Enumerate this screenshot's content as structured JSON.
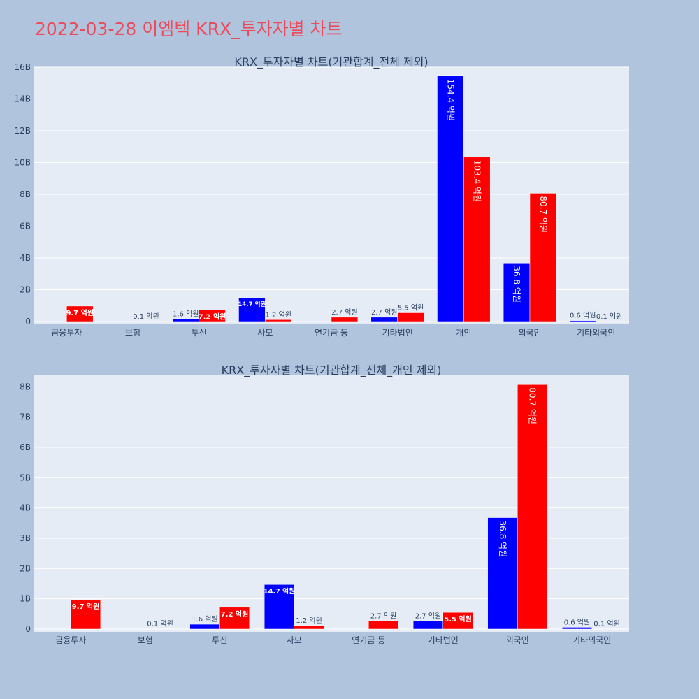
{
  "title": "2022-03-28 이엠텍 KRX_투자자별 차트",
  "colors": {
    "buy": "#0000ff",
    "sell": "#ff0000",
    "plot_bg": "#e5ecf6",
    "page_bg": "#b0c4de",
    "title": "#ee4b5a"
  },
  "chart_data": [
    {
      "type": "bar",
      "title": "KRX_투자자별 차트(기관합계_전체 제외)",
      "categories": [
        "금융투자",
        "보험",
        "투신",
        "사모",
        "연기금 등",
        "기타법인",
        "개인",
        "외국인",
        "기타외국인"
      ],
      "ylim": [
        0,
        16000000000
      ],
      "yticks": [
        0,
        2000000000,
        4000000000,
        6000000000,
        8000000000,
        10000000000,
        12000000000,
        14000000000,
        16000000000
      ],
      "ytick_labels": [
        "0",
        "2B",
        "4B",
        "6B",
        "8B",
        "10B",
        "12B",
        "14B",
        "16B"
      ],
      "grid": true,
      "series": [
        {
          "values": [
            0,
            0,
            160000000,
            1470000000,
            0,
            270000000,
            15440000000,
            3680000000,
            60000000
          ],
          "labels": [
            "",
            "",
            "1.6 억원",
            "14.7 억원",
            "",
            "2.7 억원",
            "154.4 억원",
            "36.8 억원",
            "0.6 억원"
          ]
        },
        {
          "values": [
            970000000,
            10000000,
            720000000,
            120000000,
            270000000,
            550000000,
            10340000000,
            8070000000,
            10000000
          ],
          "labels": [
            "9.7 억원",
            "0.1 억원",
            "7.2 억원",
            "1.2 억원",
            "2.7 억원",
            "5.5 억원",
            "103.4 억원",
            "80.7 억원",
            "0.1 억원"
          ]
        }
      ]
    },
    {
      "type": "bar",
      "title": "KRX_투자자별 차트(기관합계_전체_개인 제외)",
      "categories": [
        "금융투자",
        "보험",
        "투신",
        "사모",
        "연기금 등",
        "기타법인",
        "외국인",
        "기타외국인"
      ],
      "ylim": [
        0,
        8400000000
      ],
      "yticks": [
        0,
        1000000000,
        2000000000,
        3000000000,
        4000000000,
        5000000000,
        6000000000,
        7000000000,
        8000000000
      ],
      "ytick_labels": [
        "0",
        "1B",
        "2B",
        "3B",
        "4B",
        "5B",
        "6B",
        "7B",
        "8B"
      ],
      "grid": true,
      "series": [
        {
          "values": [
            0,
            0,
            160000000,
            1470000000,
            0,
            270000000,
            3680000000,
            60000000
          ],
          "labels": [
            "",
            "",
            "1.6 억원",
            "14.7 억원",
            "",
            "2.7 억원",
            "36.8 억원",
            "0.6 억원"
          ]
        },
        {
          "values": [
            970000000,
            10000000,
            720000000,
            120000000,
            270000000,
            550000000,
            8070000000,
            10000000
          ],
          "labels": [
            "9.7 억원",
            "0.1 억원",
            "7.2 억원",
            "1.2 억원",
            "2.7 억원",
            "5.5 억원",
            "80.7 억원",
            "0.1 억원"
          ]
        }
      ]
    }
  ]
}
